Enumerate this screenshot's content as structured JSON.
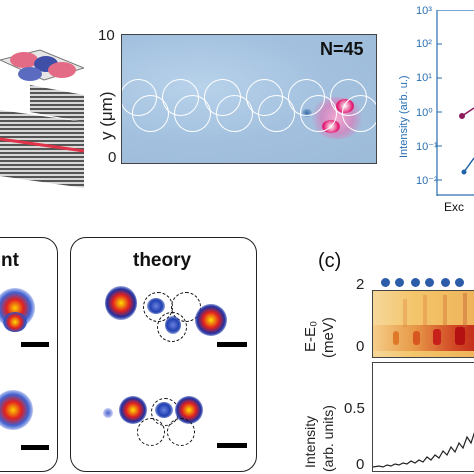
{
  "panel_c": {
    "letter": "(c)"
  },
  "spatial_map": {
    "annotation": "N=45",
    "ylabel": "y (μm)",
    "y_ticks": [
      "10",
      "0"
    ],
    "ring_count": 12,
    "colors": {
      "background": "#a9c6e2",
      "emission_core": "#ffffff",
      "emission_hot": "#e0106a"
    }
  },
  "log_plot": {
    "ylabel": "Intensity (arb. u.)",
    "y_ticks": [
      "10³",
      "10²",
      "10¹",
      "10⁰",
      "10⁻¹",
      "10⁻²"
    ],
    "xlabel_partial": "Exc",
    "colors": {
      "axis": "#2a6fb0",
      "series_a": "#8e1a5c",
      "series_b": "#1f63a8"
    }
  },
  "exp_panel": {
    "label_partial": "nt"
  },
  "theory_panel": {
    "label": "theory"
  },
  "spectrum": {
    "ylabel_top": "E-E₀\n(meV)",
    "ylabel_top_line1": "E-E₀",
    "ylabel_top_line2": "(meV)",
    "y_ticks": [
      "2",
      "0"
    ],
    "colors": {
      "map_bg": "#f3c56a",
      "map_hot": "#c8201a",
      "dots": "#2d5da8"
    }
  },
  "intensity_plot": {
    "ylabel_line1": "Intensity",
    "ylabel_line2": "(arb. units)",
    "y_ticks": [
      "0.5",
      "0"
    ]
  }
}
